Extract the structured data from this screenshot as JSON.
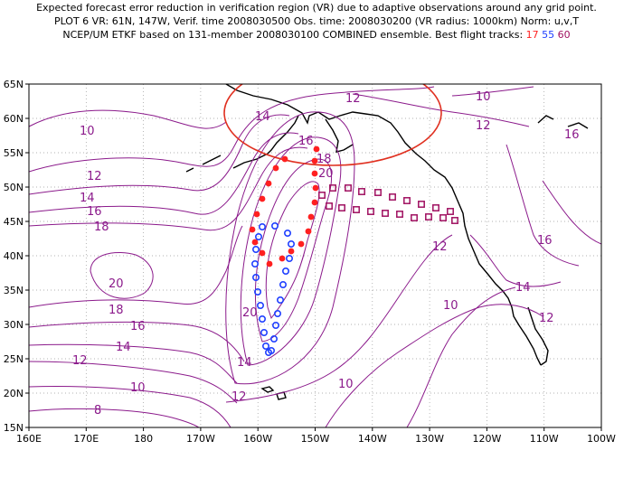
{
  "title": {
    "line1": "Expected forecast error reduction in verification region (VR) due to adaptive observations around any grid point.",
    "line2": "PLOT 6 VR: 61N, 147W, Verif. time 2008030500 Obs. time: 2008030200 (VR radius: 1000km) Norm: u,v,T",
    "line3_prefix": "NCEP/UM ETKF based on 131-member 2008030100 COMBINED ensemble.  Best flight tracks:",
    "flight_a": "17",
    "flight_b": "55",
    "flight_c": "60"
  },
  "axes": {
    "lat_labels": [
      "65N",
      "60N",
      "55N",
      "50N",
      "45N",
      "40N",
      "35N",
      "30N",
      "25N",
      "20N",
      "15N"
    ],
    "lon_labels": [
      "160E",
      "170E",
      "180",
      "170W",
      "160W",
      "150W",
      "140W",
      "130W",
      "120W",
      "110W",
      "100W"
    ]
  },
  "contour_labels": [
    "10",
    "12",
    "14",
    "16",
    "18",
    "20",
    "20",
    "18",
    "16",
    "14",
    "12",
    "10",
    "8",
    "12",
    "14",
    "16",
    "18",
    "20",
    "12",
    "10",
    "12",
    "10",
    "12",
    "14",
    "16",
    "10",
    "12",
    "14",
    "16"
  ],
  "colors": {
    "contour": "#8b1a8b",
    "verification_circle": "#e03020",
    "track_17": "#ff2020",
    "track_55": "#2040ff",
    "track_60": "#a01060"
  }
}
